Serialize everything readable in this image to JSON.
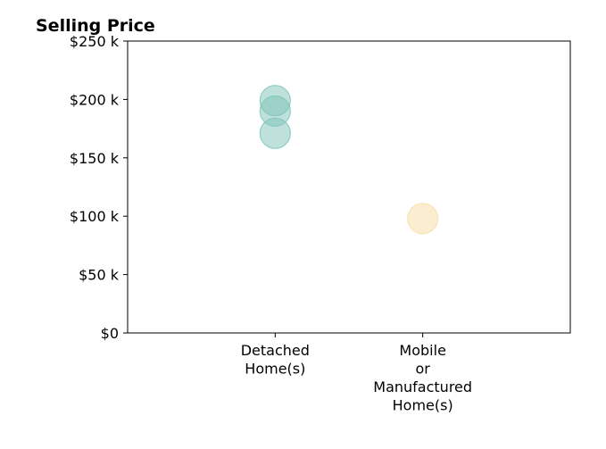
{
  "chart_data": {
    "type": "scatter",
    "title": "Selling Price",
    "xlabel": "",
    "ylabel": "",
    "categories": [
      [
        "Detached",
        "Home(s)"
      ],
      [
        "Mobile",
        "or",
        "Manufactured",
        "Home(s)"
      ]
    ],
    "x_range": [
      0,
      3
    ],
    "y_ticks": [
      "$0",
      "$50 k",
      "$100 k",
      "$150 k",
      "$200 k",
      "$250 k"
    ],
    "y_tick_values": [
      0,
      50000,
      100000,
      150000,
      200000,
      250000
    ],
    "ylim": [
      0,
      250000
    ],
    "grid": false,
    "legend": "none",
    "series": [
      {
        "category_index": 0,
        "color": "#7ec4b8",
        "opacity": 0.5,
        "points": [
          {
            "x": 1,
            "y": 199000
          },
          {
            "x": 1,
            "y": 190000
          },
          {
            "x": 1,
            "y": 171000
          }
        ]
      },
      {
        "category_index": 1,
        "color": "#f7dfa8",
        "opacity": 0.55,
        "points": [
          {
            "x": 2,
            "y": 98000
          }
        ]
      }
    ]
  }
}
